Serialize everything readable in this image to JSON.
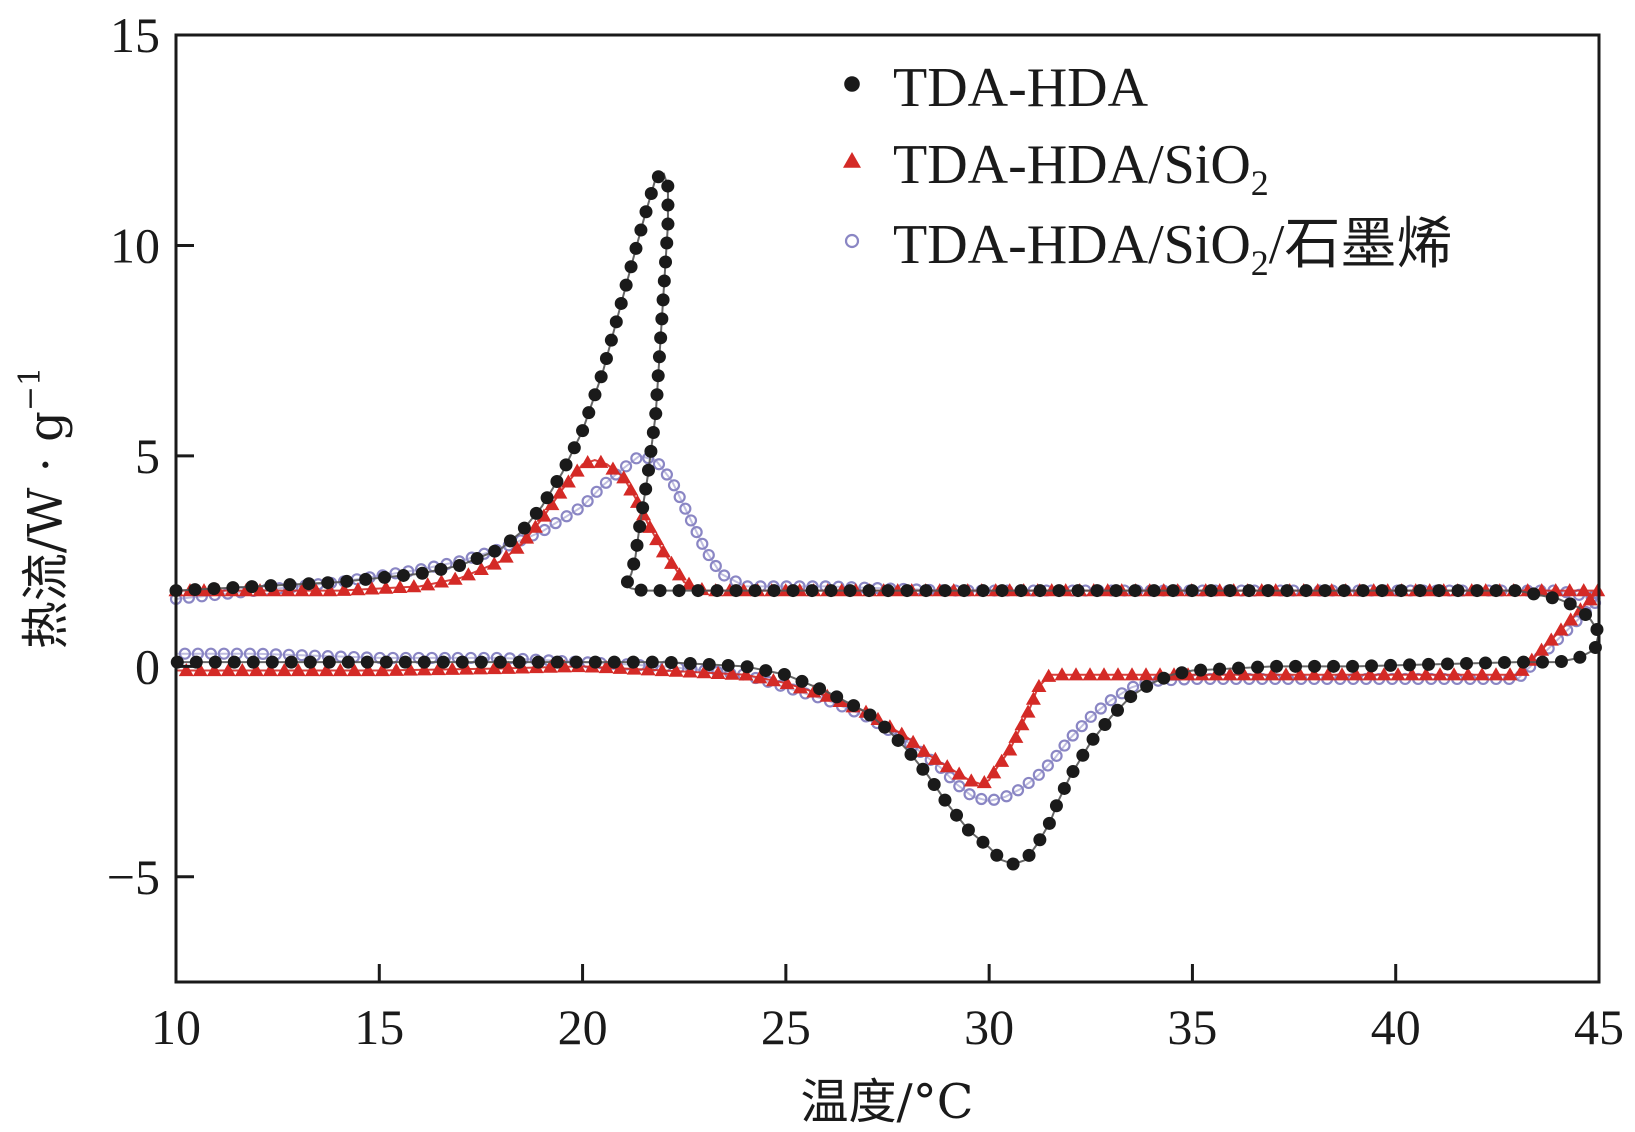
{
  "chart_data": {
    "type": "scatter",
    "title": "",
    "xlabel": "温度/°C",
    "ylabel": "热流/W · g",
    "ylabel_sup": "−1",
    "xlim": [
      10,
      45
    ],
    "ylim": [
      -7.5,
      15
    ],
    "xticks": [
      10,
      15,
      20,
      25,
      30,
      35,
      40,
      45
    ],
    "yticks": [
      -5,
      0,
      5,
      10,
      15
    ],
    "ytick_labels": [
      "−5",
      "0",
      "5",
      "10",
      "15"
    ],
    "grid": false,
    "legend_position": "top-right",
    "series": [
      {
        "name": "TDA-HDA",
        "color": "#1a1a1a",
        "marker": "circle-filled",
        "x": [
          10,
          12,
          14,
          16,
          17,
          18,
          18.5,
          19,
          19.5,
          20,
          20.5,
          21,
          21.5,
          21.8,
          22,
          22.1,
          22.1,
          22,
          21.9,
          21.8,
          21.6,
          21.4,
          21.3,
          21.2,
          21.1,
          21.1,
          21.2,
          21.5,
          22,
          23,
          25,
          27,
          29,
          31,
          33,
          35,
          37,
          39,
          41,
          43,
          44,
          44.5,
          44.8,
          45,
          44.9,
          44.5,
          44,
          43,
          41,
          39,
          37,
          36,
          35,
          34.5,
          34,
          33.5,
          33,
          32.5,
          32,
          31.7,
          31.5,
          31.2,
          30.9,
          30.6,
          30.3,
          30,
          29.5,
          29,
          28.5,
          28,
          27.5,
          27,
          26,
          25,
          24,
          22,
          20,
          18,
          16,
          14,
          12,
          10
        ],
        "y": [
          1.8,
          1.9,
          2.0,
          2.2,
          2.4,
          2.8,
          3.2,
          3.8,
          4.6,
          5.6,
          7.0,
          8.8,
          10.6,
          11.6,
          11.7,
          11.4,
          10.5,
          9.0,
          7.5,
          6.0,
          4.5,
          3.3,
          2.6,
          2.2,
          2.0,
          1.9,
          1.85,
          1.8,
          1.8,
          1.8,
          1.8,
          1.8,
          1.8,
          1.8,
          1.8,
          1.8,
          1.8,
          1.8,
          1.8,
          1.8,
          1.6,
          1.4,
          1.1,
          0.8,
          0.4,
          0.2,
          0.1,
          0.1,
          0.05,
          0.0,
          0.0,
          -0.05,
          -0.1,
          -0.2,
          -0.4,
          -0.7,
          -1.2,
          -1.8,
          -2.6,
          -3.2,
          -3.7,
          -4.2,
          -4.6,
          -4.7,
          -4.6,
          -4.3,
          -3.9,
          -3.3,
          -2.6,
          -2.0,
          -1.5,
          -1.1,
          -0.6,
          -0.2,
          0.0,
          0.1,
          0.1,
          0.1,
          0.1,
          0.1,
          0.1,
          0.1
        ]
      },
      {
        "name": "TDA-HDA/SiO₂",
        "color": "#d42a26",
        "marker": "triangle",
        "x": [
          10,
          12,
          14,
          16,
          17,
          18,
          18.5,
          19,
          19.5,
          20,
          20.3,
          20.6,
          21,
          21.3,
          21.6,
          22,
          22.3,
          22.5,
          23,
          25,
          28,
          31,
          34,
          37,
          40,
          43,
          45,
          43,
          40,
          37,
          34,
          31.5,
          31.2,
          31,
          30.7,
          30.5,
          30.2,
          30,
          29.8,
          29.5,
          29,
          28.5,
          28,
          27.5,
          27,
          26,
          25,
          24,
          22,
          20,
          18,
          15,
          12,
          10
        ],
        "y": [
          1.8,
          1.8,
          1.8,
          1.9,
          2.1,
          2.5,
          2.9,
          3.5,
          4.2,
          4.8,
          4.9,
          4.8,
          4.5,
          4.0,
          3.4,
          2.7,
          2.3,
          2.0,
          1.8,
          1.8,
          1.8,
          1.8,
          1.8,
          1.8,
          1.8,
          1.8,
          1.8,
          -0.2,
          -0.2,
          -0.2,
          -0.2,
          -0.2,
          -0.5,
          -1.0,
          -1.6,
          -2.0,
          -2.4,
          -2.7,
          -2.8,
          -2.7,
          -2.4,
          -2.1,
          -1.7,
          -1.4,
          -1.1,
          -0.7,
          -0.4,
          -0.2,
          -0.1,
          0.0,
          -0.05,
          -0.1,
          -0.1,
          -0.1
        ]
      },
      {
        "name": "TDA-HDA/SiO₂/石墨烯",
        "color": "#8a86c4",
        "marker": "circle-open",
        "x": [
          10,
          12,
          14,
          16,
          17,
          18,
          19,
          20,
          20.5,
          21,
          21.4,
          21.8,
          22.2,
          22.6,
          23,
          23.4,
          24,
          26,
          29,
          32,
          35,
          38,
          41,
          44,
          45,
          43,
          40,
          37,
          35,
          34,
          33.5,
          33,
          32.5,
          32,
          31.6,
          31.2,
          30.8,
          30.4,
          30,
          29.6,
          29.2,
          28.8,
          28,
          27,
          26,
          25,
          24,
          22,
          20,
          18,
          15,
          12,
          10
        ],
        "y": [
          1.6,
          1.8,
          2.0,
          2.3,
          2.5,
          2.8,
          3.2,
          3.8,
          4.3,
          4.7,
          5.0,
          4.9,
          4.4,
          3.6,
          2.8,
          2.2,
          1.9,
          1.9,
          1.8,
          1.8,
          1.8,
          1.8,
          1.8,
          1.8,
          1.6,
          -0.3,
          -0.3,
          -0.3,
          -0.3,
          -0.35,
          -0.5,
          -0.8,
          -1.2,
          -1.7,
          -2.2,
          -2.6,
          -2.9,
          -3.1,
          -3.2,
          -3.1,
          -2.8,
          -2.4,
          -1.8,
          -1.2,
          -0.8,
          -0.5,
          -0.2,
          0.0,
          0.1,
          0.2,
          0.2,
          0.3,
          0.3
        ]
      }
    ]
  }
}
